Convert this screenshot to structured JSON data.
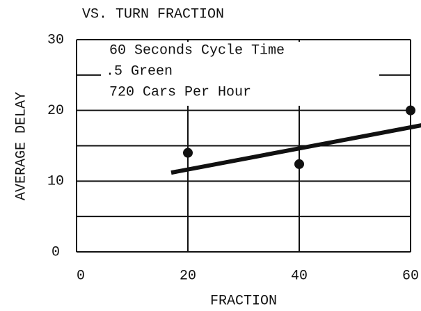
{
  "chart_data": {
    "type": "scatter",
    "title": "VS. TURN FRACTION",
    "x_label": "FRACTION",
    "y_label": "AVERAGE DELAY",
    "annotations": [
      "60 Seconds Cycle Time",
      ".5 Green",
      "720 Cars Per Hour"
    ],
    "xlim": [
      0,
      60
    ],
    "ylim": [
      0,
      30
    ],
    "xticks": [
      0,
      20,
      40,
      60
    ],
    "yticks": [
      0,
      10,
      20,
      30
    ],
    "y_minor_grid": [
      5,
      15,
      25
    ],
    "grid": true,
    "color": "#111111",
    "points": {
      "x": [
        20,
        40,
        60
      ],
      "values": [
        14,
        12.4,
        20
      ]
    },
    "fit_line": {
      "x": [
        17,
        62
      ],
      "values": [
        11.2,
        17.9
      ]
    }
  }
}
